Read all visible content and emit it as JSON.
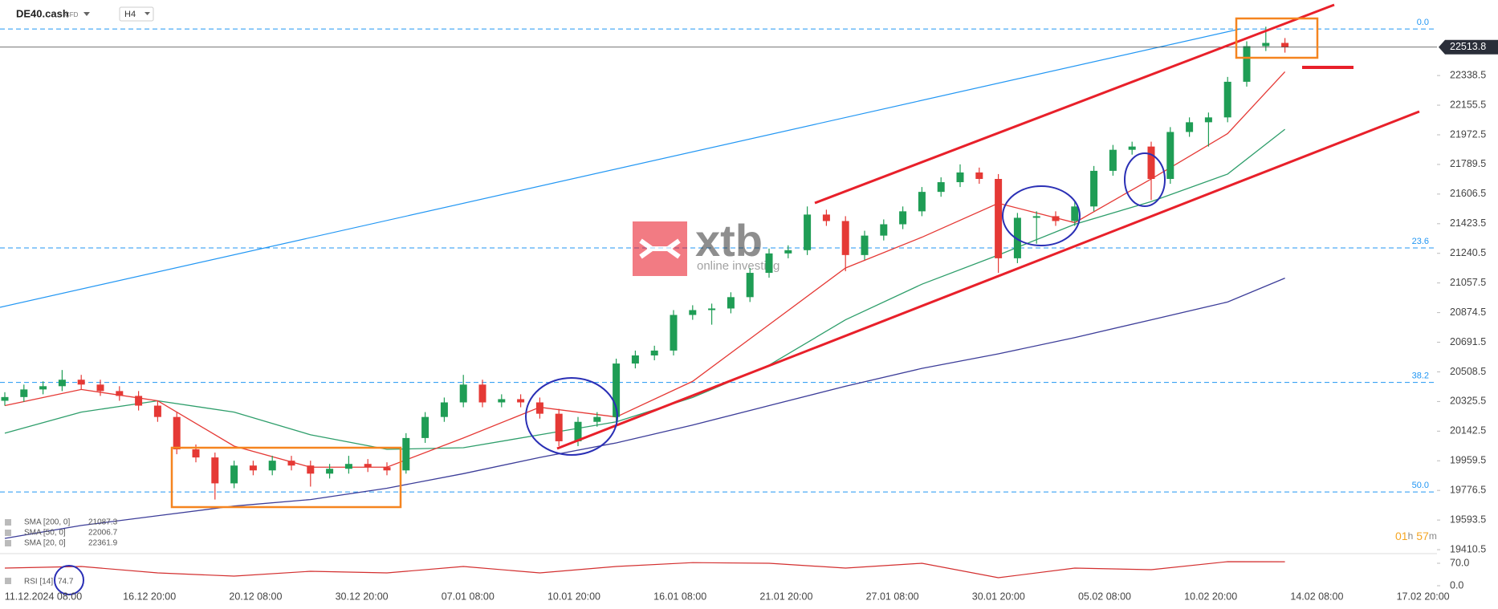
{
  "chart_data": [
    {
      "type": "candlestick",
      "instrument": "DE40.cash",
      "instrument_kind": "CFD",
      "timeframe": "H4",
      "open": [
        20330,
        20353,
        20400,
        20420,
        20460,
        20430,
        20390,
        20360,
        20300,
        20230,
        20030,
        19980,
        19820,
        19930,
        19900,
        19960,
        19930,
        19880,
        19910,
        19940,
        19920,
        19900,
        20100,
        20230,
        20320,
        20430,
        20320,
        20340,
        20320,
        20250,
        20080,
        20200,
        20230,
        20560,
        20610,
        20640,
        20860,
        20890,
        20900,
        20970,
        21120,
        21240,
        21260,
        21480,
        21440,
        21230,
        21350,
        21420,
        21500,
        21620,
        21680,
        21740,
        21700,
        21210,
        21460,
        21470,
        21440,
        21530,
        21750,
        21880,
        21900,
        21700,
        21990,
        22050,
        22080,
        22300,
        22520,
        22540
      ],
      "high": [
        20383,
        20430,
        20450,
        20520,
        20490,
        20460,
        20420,
        20390,
        20330,
        20260,
        20060,
        20010,
        19960,
        19960,
        19990,
        19990,
        19960,
        19940,
        19990,
        19970,
        19950,
        20130,
        20260,
        20350,
        20490,
        20460,
        20370,
        20370,
        20350,
        20280,
        20230,
        20260,
        20590,
        20640,
        20670,
        20890,
        20920,
        20930,
        21000,
        21150,
        21270,
        21290,
        21530,
        21510,
        21470,
        21380,
        21450,
        21530,
        21650,
        21710,
        21790,
        21770,
        21730,
        21490,
        21500,
        21500,
        21560,
        21780,
        21910,
        21930,
        21930,
        22020,
        22080,
        22110,
        22330,
        22550,
        22640,
        22570
      ],
      "low": [
        20300,
        20323,
        20370,
        20390,
        20400,
        20360,
        20330,
        20270,
        20200,
        20000,
        19950,
        19720,
        19790,
        19870,
        19870,
        19900,
        19800,
        19850,
        19880,
        19890,
        19870,
        19880,
        20070,
        20200,
        20290,
        20290,
        20290,
        20290,
        20220,
        20050,
        20050,
        20170,
        20200,
        20530,
        20580,
        20610,
        20830,
        20800,
        20870,
        20940,
        21090,
        21210,
        21230,
        21410,
        21130,
        21200,
        21320,
        21390,
        21470,
        21590,
        21650,
        21670,
        21120,
        21180,
        21300,
        21410,
        21410,
        21500,
        21720,
        21850,
        21570,
        21670,
        21960,
        21900,
        22050,
        22270,
        22490,
        22480
      ],
      "close": [
        20353,
        20400,
        20420,
        20460,
        20430,
        20390,
        20360,
        20300,
        20230,
        20030,
        19980,
        19820,
        19930,
        19900,
        19960,
        19930,
        19880,
        19910,
        19940,
        19920,
        19900,
        20100,
        20230,
        20320,
        20430,
        20320,
        20340,
        20320,
        20250,
        20080,
        20200,
        20230,
        20560,
        20610,
        20640,
        20860,
        20890,
        20900,
        20970,
        21120,
        21240,
        21260,
        21480,
        21440,
        21230,
        21350,
        21420,
        21500,
        21620,
        21680,
        21740,
        21700,
        21210,
        21460,
        21470,
        21440,
        21530,
        21750,
        21880,
        21900,
        21700,
        21990,
        22050,
        22080,
        22300,
        22520,
        22540,
        22513.8
      ],
      "up_color": "#1f9d55",
      "down_color": "#e53935",
      "indicators": [
        {
          "name": "SMA [200, 0]",
          "color": "#3c3d99",
          "x": [
            0,
            4,
            8,
            12,
            16,
            20,
            24,
            28,
            32,
            36,
            40,
            44,
            48,
            52,
            56,
            60,
            64,
            67
          ],
          "values": [
            19480,
            19560,
            19620,
            19680,
            19720,
            19790,
            19880,
            19980,
            20070,
            20180,
            20300,
            20420,
            20530,
            20620,
            20720,
            20830,
            20940,
            21087.3
          ]
        },
        {
          "name": "SMA [50, 0]",
          "color": "#2e9e6b",
          "x": [
            0,
            4,
            8,
            12,
            16,
            20,
            24,
            28,
            32,
            36,
            40,
            44,
            48,
            52,
            56,
            60,
            64,
            67
          ],
          "values": [
            20130,
            20260,
            20330,
            20260,
            20120,
            20030,
            20040,
            20120,
            20200,
            20350,
            20550,
            20830,
            21050,
            21230,
            21420,
            21560,
            21730,
            22006.7
          ]
        },
        {
          "name": "SMA [20, 0]",
          "color": "#e53935",
          "x": [
            0,
            4,
            8,
            12,
            16,
            20,
            24,
            28,
            32,
            36,
            40,
            44,
            48,
            52,
            56,
            60,
            64,
            67
          ],
          "values": [
            20300,
            20400,
            20330,
            20050,
            19920,
            19920,
            20100,
            20290,
            20230,
            20450,
            20800,
            21150,
            21340,
            21550,
            21430,
            21700,
            21980,
            22361.9
          ]
        }
      ],
      "ylim": [
        19386,
        22805
      ],
      "yticks": [
        22338.5,
        22155.5,
        21972.5,
        21789.5,
        21606.5,
        21423.5,
        21240.5,
        21057.5,
        20874.5,
        20691.5,
        20508.5,
        20325.5,
        20142.5,
        19959.5,
        19776.5,
        19593.5,
        19410.5
      ],
      "fib_levels": [
        {
          "label": "0.0",
          "price": 22626
        },
        {
          "label": "23.6",
          "price": 21274
        },
        {
          "label": "38.2",
          "price": 20443
        },
        {
          "label": "50.0",
          "price": 19767
        }
      ],
      "xticklabels": [
        "11.12.2024 08:00",
        "16.12 20:00",
        "20.12 08:00",
        "30.12 20:00",
        "07.01 08:00",
        "10.01 20:00",
        "16.01 08:00",
        "21.01 20:00",
        "27.01 08:00",
        "30.01 20:00",
        "05.02 08:00",
        "10.02 20:00",
        "14.02 08:00",
        "17.02 20:00"
      ],
      "countdown": {
        "hours": "01",
        "h": "h",
        "minutes": "57",
        "m": "m"
      },
      "watermark": {
        "brand": "xtb",
        "tagline": "online investing"
      }
    },
    {
      "type": "line",
      "name": "RSI [14]",
      "color": "#d32f2f",
      "x": [
        0,
        4,
        8,
        12,
        16,
        20,
        24,
        28,
        32,
        36,
        40,
        44,
        48,
        52,
        56,
        60,
        64,
        67
      ],
      "values": [
        55,
        60,
        40,
        30,
        45,
        40,
        60,
        40,
        60,
        72,
        70,
        55,
        70,
        25,
        55,
        50,
        75,
        74.7
      ],
      "ylim": [
        -35,
        100
      ],
      "yticks": [
        {
          "value": 70,
          "label": "70.0"
        },
        {
          "value": 0,
          "label": "0.0"
        }
      ]
    }
  ]
}
